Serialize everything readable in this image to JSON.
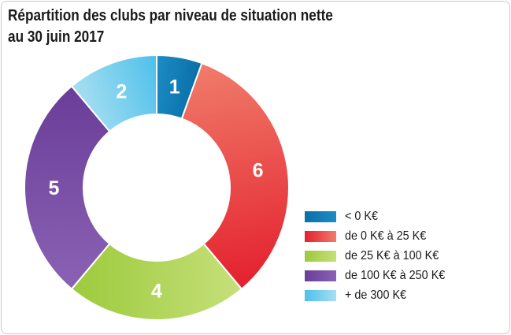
{
  "chart_data": {
    "type": "pie",
    "title_line1": "Répartition des clubs par niveau de situation nette",
    "title_line2": "au 30 juin 2017",
    "categories": [
      "< 0 K€",
      "de 0 K€ à 25 K€",
      "de 25 K€ à 100 K€",
      "de 100 K€ à 250 K€",
      "+ de 300 K€"
    ],
    "values": [
      1,
      6,
      4,
      5,
      2
    ],
    "donut": true,
    "legend_position": "bottom-right",
    "colors": {
      "dark": [
        "#0a6fa8",
        "#e4202e",
        "#9cca3c",
        "#6a3d98",
        "#4dc0ea"
      ],
      "light": [
        "#1c8cc4",
        "#f07c6a",
        "#c6e07a",
        "#8a62b4",
        "#a8dff2"
      ]
    }
  }
}
